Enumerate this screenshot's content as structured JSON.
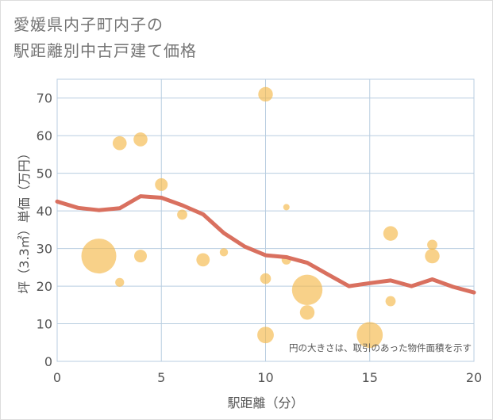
{
  "title_lines": [
    "愛媛県内子町内子の",
    "駅距離別中古戸建て価格"
  ],
  "colors": {
    "bubble": "#f5b84a",
    "line": "#d9705f",
    "grid": "#b8cde0",
    "background": "#ffffff"
  },
  "chart_data": {
    "type": "scatter",
    "xlabel": "駅距離（分）",
    "ylabel": "坪（3.3㎡）単価（万円）",
    "xlim": [
      0,
      20
    ],
    "ylim": [
      0,
      75
    ],
    "xticks": [
      0,
      5,
      10,
      15,
      20
    ],
    "yticks": [
      0,
      10,
      20,
      30,
      40,
      50,
      60,
      70
    ],
    "grid": true,
    "note": "円の大きさは、取引のあった物件面積を示す",
    "bubbles": [
      {
        "x": 2,
        "y": 28,
        "size": 5.5
      },
      {
        "x": 3,
        "y": 58,
        "size": 2.2
      },
      {
        "x": 3,
        "y": 21,
        "size": 1.4
      },
      {
        "x": 4,
        "y": 59,
        "size": 2.2
      },
      {
        "x": 4,
        "y": 28,
        "size": 2.0
      },
      {
        "x": 5,
        "y": 47,
        "size": 2.0
      },
      {
        "x": 6,
        "y": 39,
        "size": 1.6
      },
      {
        "x": 7,
        "y": 27,
        "size": 2.1
      },
      {
        "x": 8,
        "y": 29,
        "size": 1.3
      },
      {
        "x": 10,
        "y": 71,
        "size": 2.3
      },
      {
        "x": 10,
        "y": 22,
        "size": 1.7
      },
      {
        "x": 10,
        "y": 7,
        "size": 2.6
      },
      {
        "x": 11,
        "y": 41,
        "size": 1.0
      },
      {
        "x": 11,
        "y": 27,
        "size": 1.5
      },
      {
        "x": 12,
        "y": 19,
        "size": 4.8
      },
      {
        "x": 12,
        "y": 13,
        "size": 2.3
      },
      {
        "x": 15,
        "y": 7,
        "size": 4.1
      },
      {
        "x": 16,
        "y": 34,
        "size": 2.3
      },
      {
        "x": 16,
        "y": 16,
        "size": 1.6
      },
      {
        "x": 18,
        "y": 31,
        "size": 1.6
      },
      {
        "x": 18,
        "y": 28,
        "size": 2.3
      }
    ],
    "trend": {
      "x": [
        0,
        1,
        2,
        3,
        4,
        5,
        6,
        7,
        8,
        9,
        10,
        11,
        12,
        13,
        14,
        15,
        16,
        17,
        18,
        19,
        20
      ],
      "y": [
        42.5,
        40.8,
        40.2,
        40.7,
        43.9,
        43.5,
        41.5,
        39.1,
        34.1,
        30.5,
        28.2,
        27.7,
        26.2,
        23.1,
        20.0,
        20.8,
        21.5,
        20.0,
        21.8,
        19.8,
        18.3
      ]
    }
  }
}
